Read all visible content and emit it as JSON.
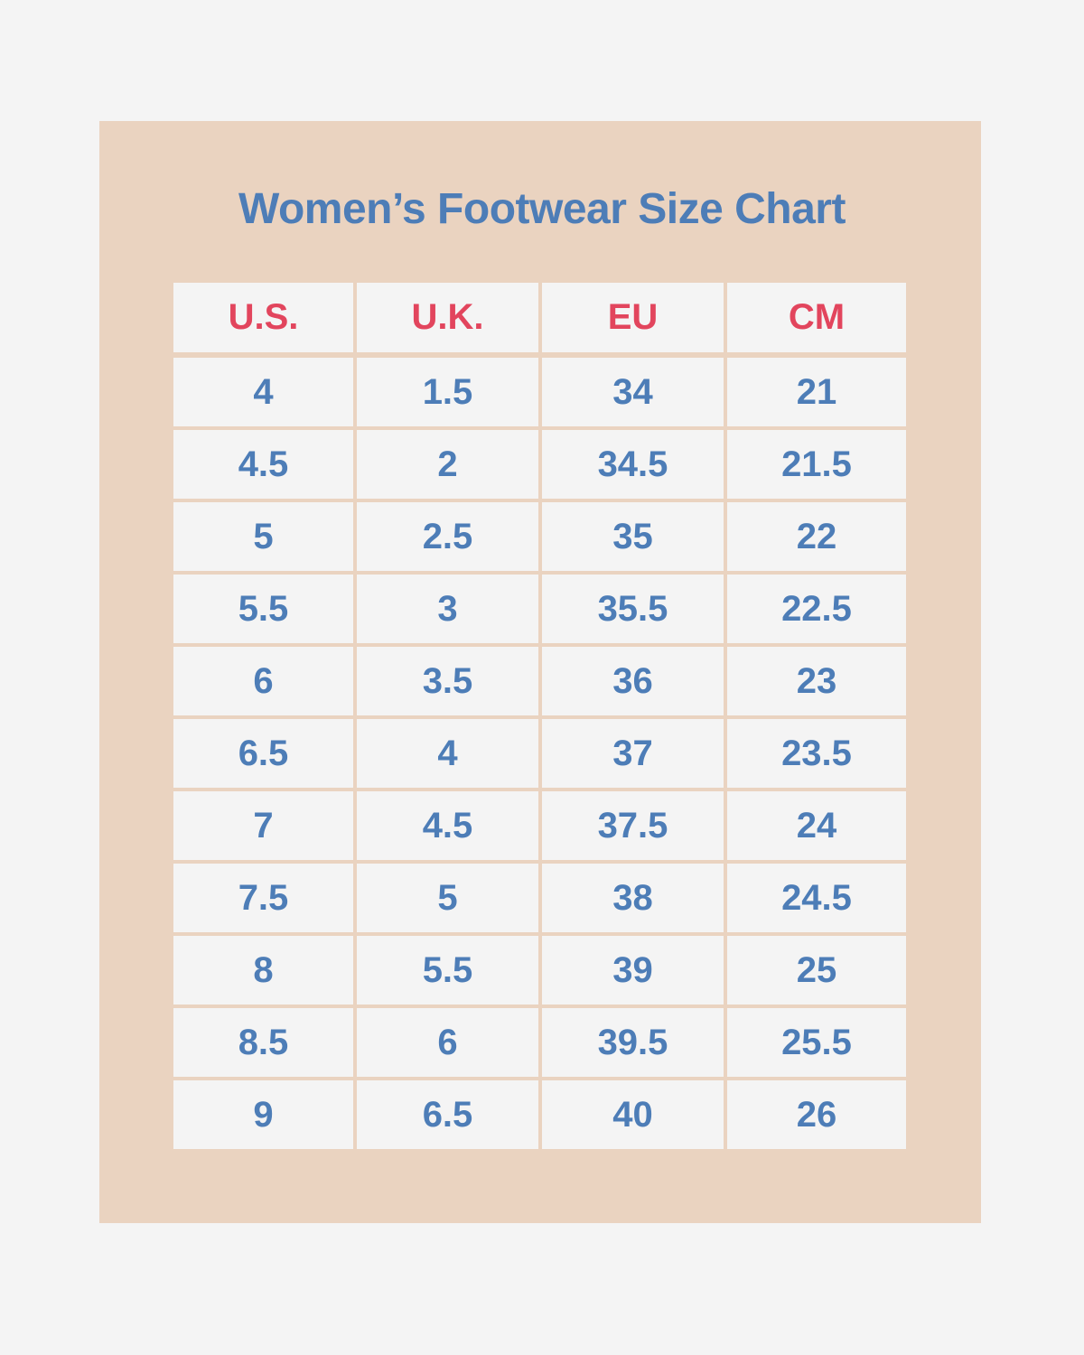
{
  "chart_data": {
    "type": "table",
    "title": "Women’s Footwear Size Chart",
    "columns": [
      "U.S.",
      "U.K.",
      "EU",
      "CM"
    ],
    "rows": [
      [
        "4",
        "1.5",
        "34",
        "21"
      ],
      [
        "4.5",
        "2",
        "34.5",
        "21.5"
      ],
      [
        "5",
        "2.5",
        "35",
        "22"
      ],
      [
        "5.5",
        "3",
        "35.5",
        "22.5"
      ],
      [
        "6",
        "3.5",
        "36",
        "23"
      ],
      [
        "6.5",
        "4",
        "37",
        "23.5"
      ],
      [
        "7",
        "4.5",
        "37.5",
        "24"
      ],
      [
        "7.5",
        "5",
        "38",
        "24.5"
      ],
      [
        "8",
        "5.5",
        "39",
        "25"
      ],
      [
        "8.5",
        "6",
        "39.5",
        "25.5"
      ],
      [
        "9",
        "6.5",
        "40",
        "26"
      ]
    ]
  },
  "colors": {
    "background": "#f4f4f4",
    "panel": "#ead3c0",
    "title": "#4d7db7",
    "header_text": "#e2455d",
    "cell_text": "#4d7db7"
  }
}
